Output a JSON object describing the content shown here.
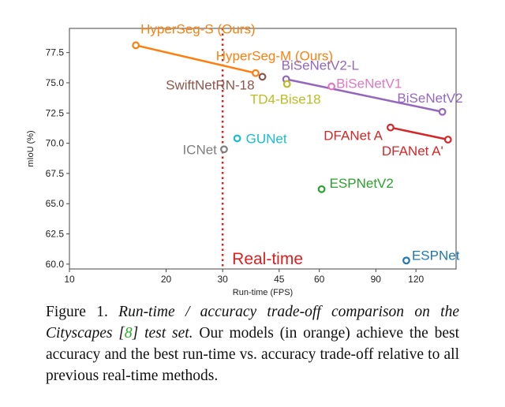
{
  "chart_data": {
    "type": "scatter",
    "xlabel": "Run-time (FPS)",
    "ylabel": "mIoU (%)",
    "x_scale": "log",
    "xlim": [
      10,
      160
    ],
    "ylim": [
      59.6,
      79.5
    ],
    "x_ticks": [
      10,
      20,
      30,
      45,
      60,
      90,
      120
    ],
    "y_ticks": [
      60.0,
      62.5,
      65.0,
      67.5,
      70.0,
      72.5,
      75.0,
      77.5
    ],
    "grid": false,
    "legend": "none",
    "threshold_line": {
      "x": 30,
      "label": "Real-time",
      "color": "#e01e1e"
    },
    "series": [
      {
        "name": "HyperSeg-S (Ours)",
        "color": "#ff7f0e",
        "points": [
          {
            "x": 16.1,
            "y": 78.1
          },
          {
            "x": 38.0,
            "y": 75.8
          }
        ]
      },
      {
        "name": "HyperSeg-M (Ours)",
        "color": "#ff7f0e",
        "points": [
          {
            "x": 38.0,
            "y": 75.8
          }
        ]
      },
      {
        "name": "SwiftNetRN-18",
        "color": "#8c564b",
        "points": [
          {
            "x": 39.9,
            "y": 75.5
          }
        ]
      },
      {
        "name": "BiSeNetV2-L",
        "color": "#9467bd",
        "points": [
          {
            "x": 47.3,
            "y": 75.3
          }
        ]
      },
      {
        "name": "BiSeNetV2",
        "color": "#9467bd",
        "points": [
          {
            "x": 47.3,
            "y": 75.3
          },
          {
            "x": 145.0,
            "y": 72.6
          }
        ]
      },
      {
        "name": "TD4-Bise18",
        "color": "#bcbd22",
        "points": [
          {
            "x": 47.6,
            "y": 74.9
          }
        ]
      },
      {
        "name": "BiSeNetV1",
        "color": "#e377c2",
        "points": [
          {
            "x": 65.5,
            "y": 74.7
          }
        ]
      },
      {
        "name": "GUNet",
        "color": "#17becf",
        "points": [
          {
            "x": 33.3,
            "y": 70.4
          }
        ]
      },
      {
        "name": "ICNet",
        "color": "#7f7f7f",
        "points": [
          {
            "x": 30.3,
            "y": 69.5
          }
        ]
      },
      {
        "name": "DFANet A",
        "color": "#d62728",
        "points": [
          {
            "x": 100.0,
            "y": 71.3
          }
        ]
      },
      {
        "name": "DFANet A'",
        "color": "#d62728",
        "points": [
          {
            "x": 100.0,
            "y": 71.3
          },
          {
            "x": 151.0,
            "y": 70.3
          }
        ]
      },
      {
        "name": "ESPNetV2",
        "color": "#2ca02c",
        "points": [
          {
            "x": 61.0,
            "y": 66.2
          }
        ]
      },
      {
        "name": "ESPNet",
        "color": "#1f77b4",
        "points": [
          {
            "x": 112.0,
            "y": 60.3
          }
        ]
      }
    ]
  },
  "caption": {
    "prefix": "Figure 1. ",
    "italic_part": "Run-time / accuracy trade-off comparison on the Cityscapes [",
    "citation": "8",
    "italic_after": "] test set.",
    "rest": " Our models (in orange) achieve the best accuracy and the best run-time vs. accuracy trade-off relative to all previous real-time methods."
  }
}
